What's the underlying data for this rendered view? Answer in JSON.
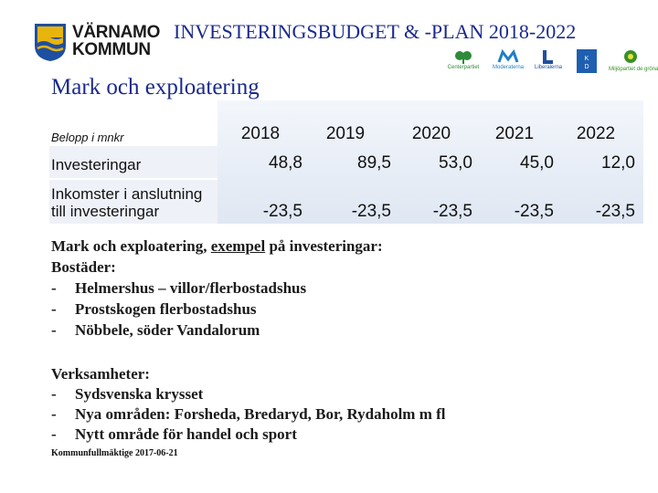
{
  "header": {
    "logo_line1": "VÄRNAMO",
    "logo_line2": "KOMMUN",
    "title": "INVESTERINGSBUDGET & -PLAN 2018-2022"
  },
  "partners": [
    {
      "name": "Centerpartiet",
      "color": "#2e8b3a"
    },
    {
      "name": "Moderaterna",
      "color": "#1f7fc4"
    },
    {
      "name": "Liberalerna",
      "color": "#1f4f9e"
    },
    {
      "name": "Kristdemokraterna",
      "color": "#1f5fb0"
    },
    {
      "name": "Miljöpartiet de gröna",
      "color": "#3a8f2a"
    }
  ],
  "subtitle": "Mark och exploatering",
  "table": {
    "unit_label": "Belopp i mnkr",
    "years": [
      "2018",
      "2019",
      "2020",
      "2021",
      "2022"
    ],
    "rows": [
      {
        "label": "Investeringar",
        "values": [
          "48,8",
          "89,5",
          "53,0",
          "45,0",
          "12,0"
        ]
      },
      {
        "label_line1": "Inkomster i anslutning",
        "label_line2": "till investeringar",
        "values": [
          "-23,5",
          "-23,5",
          "-23,5",
          "-23,5",
          "-23,5"
        ]
      }
    ]
  },
  "body": {
    "intro_before": "Mark och exploatering, ",
    "intro_underlined": "exempel",
    "intro_after": " på investeringar:",
    "bostader_heading": "Bostäder:",
    "bostader_items": [
      "Helmershus – villor/flerbostadshus",
      "Prostskogen flerbostadshus",
      "Nöbbele, söder Vandalorum"
    ],
    "verksamheter_heading": "Verksamheter:",
    "verksamheter_items": [
      "Sydsvenska krysset",
      "Nya områden: Forsheda, Bredaryd, Bor, Rydaholm m fl",
      "Nytt område för handel och sport"
    ],
    "dash": "-"
  },
  "footer": "Kommunfullmäktige 2017-06-21",
  "colors": {
    "title_blue": "#1a2a8c",
    "shield_blue": "#1e4fa0",
    "shield_gold": "#e8b40e"
  }
}
